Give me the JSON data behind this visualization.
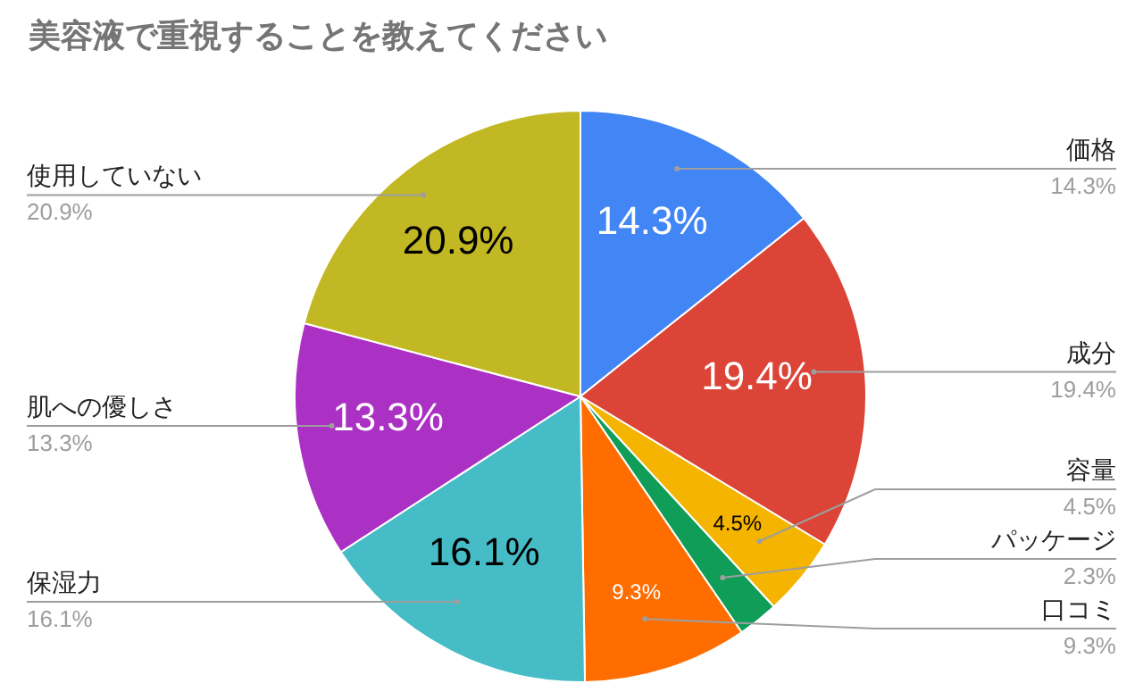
{
  "chart_data": {
    "type": "pie",
    "title": "美容液で重視することを教えてください",
    "categories": [
      "価格",
      "成分",
      "容量",
      "パッケージ",
      "口コミ",
      "保湿力",
      "肌への優しさ",
      "使用していない"
    ],
    "values": [
      14.3,
      19.4,
      4.5,
      2.3,
      9.3,
      16.1,
      13.3,
      20.9
    ],
    "colors": [
      "#4285f4",
      "#db4437",
      "#f4b400",
      "#0f9d58",
      "#ff6d01",
      "#46bdc6",
      "#ab30c4",
      "#c1b824"
    ],
    "value_labels": [
      "14.3%",
      "19.4%",
      "4.5%",
      "2.3%",
      "9.3%",
      "16.1%",
      "13.3%",
      "20.9%"
    ]
  }
}
